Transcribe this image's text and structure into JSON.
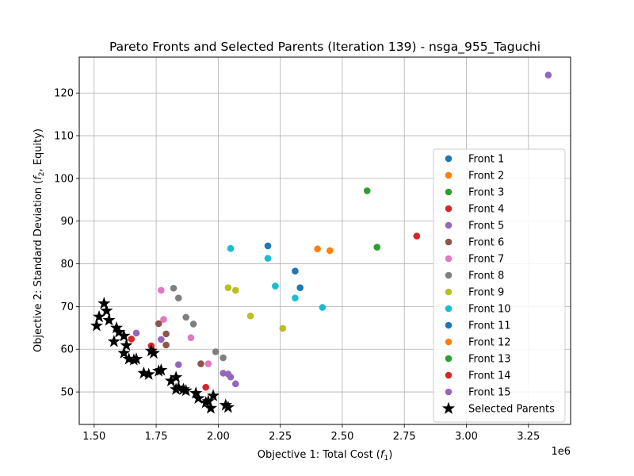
{
  "chart_data": {
    "type": "scatter",
    "title": "Pareto Fronts and Selected Parents (Iteration 139) - nsga_955_Taguchi",
    "xlabel": "Objective 1: Total Cost (",
    "xlabel_sym": "f",
    "xlabel_sub": "1",
    "xlabel_end": ")",
    "ylabel": "Objective 2: Standard Deviation (",
    "ylabel_sym": "f",
    "ylabel_sub": "2",
    "ylabel_end": ", Equity)",
    "x_offset_label": "1e6",
    "xlim": [
      1.44,
      3.42
    ],
    "ylim": [
      42.4,
      128.4
    ],
    "x_ticks": [
      1.5,
      1.75,
      2.0,
      2.25,
      2.5,
      2.75,
      3.0,
      3.25
    ],
    "x_tick_labels": [
      "1.50",
      "1.75",
      "2.00",
      "2.25",
      "2.50",
      "2.75",
      "3.00",
      "3.25"
    ],
    "y_ticks": [
      50,
      60,
      70,
      80,
      90,
      100,
      110,
      120
    ],
    "y_tick_labels": [
      "50",
      "60",
      "70",
      "80",
      "90",
      "100",
      "110",
      "120"
    ],
    "grid": true,
    "legend_position": "lower-right",
    "series": [
      {
        "name": "Front 1",
        "color": "#1f77b4",
        "points": [
          [
            2.2,
            84.2
          ],
          [
            2.31,
            78.3
          ],
          [
            2.33,
            74.4
          ]
        ]
      },
      {
        "name": "Front 2",
        "color": "#ff7f0e",
        "points": [
          [
            2.4,
            83.5
          ],
          [
            2.45,
            83.1
          ]
        ]
      },
      {
        "name": "Front 3",
        "color": "#2ca02c",
        "points": [
          [
            2.6,
            97.1
          ],
          [
            2.64,
            83.9
          ]
        ]
      },
      {
        "name": "Front 4",
        "color": "#d62728",
        "points": [
          [
            2.8,
            86.5
          ]
        ]
      },
      {
        "name": "Front 5",
        "color": "#9467bd",
        "points": [
          [
            3.33,
            124.2
          ]
        ]
      },
      {
        "name": "Front 6",
        "color": "#8c564b",
        "points": [
          [
            1.76,
            66.0
          ],
          [
            1.79,
            63.6
          ],
          [
            1.79,
            61.0
          ],
          [
            1.93,
            56.6
          ]
        ]
      },
      {
        "name": "Front 7",
        "color": "#e377c2",
        "points": [
          [
            1.77,
            73.8
          ],
          [
            1.78,
            67.0
          ],
          [
            1.89,
            62.7
          ],
          [
            1.96,
            56.6
          ]
        ]
      },
      {
        "name": "Front 8",
        "color": "#7f7f7f",
        "points": [
          [
            1.82,
            74.3
          ],
          [
            1.84,
            72.0
          ],
          [
            1.87,
            67.5
          ],
          [
            1.9,
            65.9
          ],
          [
            1.99,
            59.4
          ],
          [
            2.02,
            58.0
          ]
        ]
      },
      {
        "name": "Front 9",
        "color": "#bcbd22",
        "points": [
          [
            2.04,
            74.4
          ],
          [
            2.07,
            73.8
          ],
          [
            2.13,
            67.8
          ],
          [
            2.26,
            64.9
          ]
        ]
      },
      {
        "name": "Front 10",
        "color": "#17becf",
        "points": [
          [
            2.05,
            83.6
          ],
          [
            2.2,
            81.3
          ],
          [
            2.23,
            74.8
          ],
          [
            2.31,
            72.0
          ],
          [
            2.42,
            69.8
          ]
        ]
      },
      {
        "name": "Front 11",
        "color": "#1f77b4",
        "points": []
      },
      {
        "name": "Front 12",
        "color": "#ff7f0e",
        "points": []
      },
      {
        "name": "Front 13",
        "color": "#2ca02c",
        "points": []
      },
      {
        "name": "Front 14",
        "color": "#d62728",
        "points": [
          [
            1.73,
            60.8
          ],
          [
            1.65,
            62.4
          ],
          [
            1.95,
            51.1
          ]
        ]
      },
      {
        "name": "Front 15",
        "color": "#9467bd",
        "points": [
          [
            1.67,
            63.8
          ],
          [
            1.77,
            62.3
          ],
          [
            1.84,
            56.4
          ],
          [
            2.02,
            54.4
          ],
          [
            2.04,
            54.2
          ],
          [
            2.05,
            53.5
          ],
          [
            2.07,
            51.9
          ]
        ]
      }
    ],
    "parents": {
      "name": "Selected Parents",
      "color": "#000000",
      "points": [
        [
          1.51,
          65.5
        ],
        [
          1.52,
          67.6
        ],
        [
          1.54,
          70.7
        ],
        [
          1.55,
          69.0
        ],
        [
          1.56,
          66.8
        ],
        [
          1.58,
          61.8
        ],
        [
          1.59,
          65.0
        ],
        [
          1.6,
          64.0
        ],
        [
          1.62,
          63.1
        ],
        [
          1.62,
          59.1
        ],
        [
          1.63,
          60.9
        ],
        [
          1.64,
          57.7
        ],
        [
          1.66,
          57.5
        ],
        [
          1.67,
          57.7
        ],
        [
          1.7,
          54.4
        ],
        [
          1.72,
          54.1
        ],
        [
          1.73,
          59.6
        ],
        [
          1.74,
          59.1
        ],
        [
          1.76,
          54.9
        ],
        [
          1.77,
          55.1
        ],
        [
          1.81,
          52.6
        ],
        [
          1.83,
          53.4
        ],
        [
          1.83,
          50.6
        ],
        [
          1.84,
          51.0
        ],
        [
          1.86,
          50.6
        ],
        [
          1.87,
          50.3
        ],
        [
          1.91,
          49.7
        ],
        [
          1.92,
          48.5
        ],
        [
          1.95,
          47.5
        ],
        [
          1.96,
          47.8
        ],
        [
          1.97,
          46.2
        ],
        [
          1.98,
          49.1
        ],
        [
          2.03,
          46.9
        ],
        [
          2.04,
          46.4
        ]
      ]
    }
  }
}
